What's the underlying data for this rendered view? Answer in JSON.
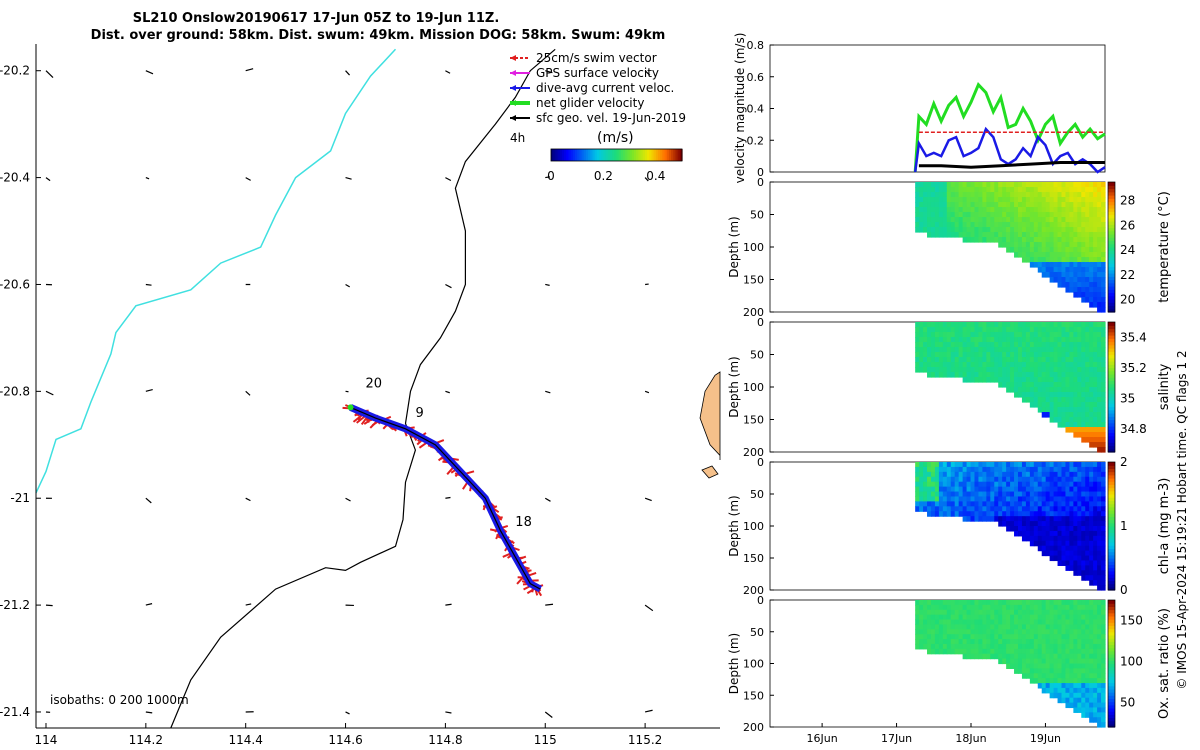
{
  "chart_data": [
    {
      "type": "map",
      "title_line1": "SL210 Onslow20190617 17-Jun 05Z to 19-Jun 11Z.",
      "title_line2": "Dist. over ground: 58km. Dist. swum: 49km. Mission DOG: 58km. Swum: 49km",
      "xlim": [
        113.98,
        115.35
      ],
      "ylim": [
        -21.43,
        -20.15
      ],
      "xticks": [
        "114",
        "114.2",
        "114.4",
        "114.6",
        "114.8",
        "115",
        "115.2"
      ],
      "xtick_values": [
        114,
        114.2,
        114.4,
        114.6,
        114.8,
        115,
        115.2
      ],
      "yticks": [
        "-20.2",
        "-20.4",
        "-20.6",
        "-20.8",
        "-21",
        "-21.2",
        "-21.4"
      ],
      "ytick_values": [
        -20.2,
        -20.4,
        -20.6,
        -20.8,
        -21,
        -21.2,
        -21.4
      ],
      "legend": [
        {
          "label": "25cm/s swim vector",
          "color": "#e02020"
        },
        {
          "label": "GPS surface velocity",
          "color": "#e020e0"
        },
        {
          "label": "dive-avg current veloc.",
          "color": "#1a1ae6"
        },
        {
          "label": "net glider velocity",
          "color": "#22dd22"
        },
        {
          "label": "sfc geo. vel. 19-Jun-2019",
          "color": "#000000"
        }
      ],
      "interval_label": "4h",
      "colorbar_label": "(m/s)",
      "colorbar_ticks": [
        "0",
        "0.2",
        "0.4"
      ],
      "colorbar_values": [
        0,
        0.2,
        0.4
      ],
      "colorbar_range": [
        0,
        0.5
      ],
      "isobath_label": "isobaths: 0   200  1000m",
      "track_labels": [
        {
          "text": "20",
          "lon": 114.64,
          "lat": -20.793
        },
        {
          "text": "9",
          "lon": 114.74,
          "lat": -20.848
        },
        {
          "text": "18",
          "lon": 114.94,
          "lat": -21.052
        }
      ],
      "track": [
        [
          114.61,
          -20.83
        ],
        [
          114.66,
          -20.85
        ],
        [
          114.72,
          -20.87
        ],
        [
          114.78,
          -20.9
        ],
        [
          114.83,
          -20.95
        ],
        [
          114.88,
          -21.0
        ],
        [
          114.91,
          -21.06
        ],
        [
          114.94,
          -21.11
        ],
        [
          114.97,
          -21.16
        ],
        [
          114.99,
          -21.17
        ]
      ],
      "isobath_200m": [
        [
          114.25,
          -21.43
        ],
        [
          114.29,
          -21.34
        ],
        [
          114.35,
          -21.26
        ],
        [
          114.46,
          -21.17
        ],
        [
          114.56,
          -21.13
        ],
        [
          114.6,
          -21.135
        ],
        [
          114.63,
          -21.12
        ],
        [
          114.7,
          -21.09
        ],
        [
          114.715,
          -21.04
        ],
        [
          114.72,
          -20.97
        ],
        [
          114.74,
          -20.91
        ],
        [
          114.72,
          -20.86
        ],
        [
          114.73,
          -20.8
        ],
        [
          114.75,
          -20.75
        ],
        [
          114.79,
          -20.7
        ],
        [
          114.82,
          -20.65
        ],
        [
          114.84,
          -20.6
        ],
        [
          114.84,
          -20.5
        ],
        [
          114.82,
          -20.42
        ],
        [
          114.84,
          -20.37
        ],
        [
          114.9,
          -20.3
        ],
        [
          114.94,
          -20.25
        ],
        [
          114.97,
          -20.2
        ],
        [
          115.02,
          -20.16
        ]
      ],
      "isobath_1000m": [
        [
          113.98,
          -20.99
        ],
        [
          114.0,
          -20.95
        ],
        [
          114.02,
          -20.89
        ],
        [
          114.07,
          -20.87
        ],
        [
          114.09,
          -20.82
        ],
        [
          114.13,
          -20.73
        ],
        [
          114.14,
          -20.69
        ],
        [
          114.18,
          -20.64
        ],
        [
          114.29,
          -20.61
        ],
        [
          114.35,
          -20.56
        ],
        [
          114.43,
          -20.53
        ],
        [
          114.46,
          -20.47
        ],
        [
          114.5,
          -20.4
        ],
        [
          114.57,
          -20.35
        ],
        [
          114.6,
          -20.28
        ],
        [
          114.65,
          -20.21
        ],
        [
          114.7,
          -20.16
        ]
      ],
      "island": [
        [
          115.34,
          -20.77
        ],
        [
          115.32,
          -20.8
        ],
        [
          115.31,
          -20.85
        ],
        [
          115.33,
          -20.9
        ],
        [
          115.35,
          -20.92
        ]
      ]
    },
    {
      "type": "line",
      "ylabel": "velocity magnitude (m/s)",
      "ylim": [
        0,
        0.8
      ],
      "yticks": [
        "0",
        "0.2",
        "0.4",
        "0.6",
        "0.8"
      ],
      "ytick_values": [
        0,
        0.2,
        0.4,
        0.6,
        0.8
      ],
      "xlim_days": [
        15.3,
        19.8
      ],
      "series": [
        {
          "name": "net glider velocity",
          "color": "#22dd22",
          "x": [
            17.25,
            17.3,
            17.4,
            17.5,
            17.6,
            17.7,
            17.8,
            17.9,
            18.0,
            18.1,
            18.2,
            18.3,
            18.4,
            18.5,
            18.6,
            18.7,
            18.8,
            18.9,
            19.0,
            19.1,
            19.2,
            19.3,
            19.4,
            19.5,
            19.6,
            19.7,
            19.8
          ],
          "values": [
            0.0,
            0.35,
            0.3,
            0.43,
            0.32,
            0.42,
            0.47,
            0.35,
            0.44,
            0.55,
            0.5,
            0.38,
            0.47,
            0.28,
            0.3,
            0.4,
            0.32,
            0.2,
            0.3,
            0.35,
            0.18,
            0.25,
            0.3,
            0.22,
            0.27,
            0.21,
            0.24
          ]
        },
        {
          "name": "dive-avg current veloc.",
          "color": "#1a1ae6",
          "x": [
            17.25,
            17.3,
            17.4,
            17.5,
            17.6,
            17.7,
            17.8,
            17.9,
            18.0,
            18.1,
            18.2,
            18.3,
            18.4,
            18.5,
            18.6,
            18.7,
            18.8,
            18.9,
            19.0,
            19.1,
            19.2,
            19.3,
            19.4,
            19.5,
            19.6,
            19.7,
            19.8
          ],
          "values": [
            0.0,
            0.18,
            0.1,
            0.12,
            0.1,
            0.2,
            0.22,
            0.1,
            0.12,
            0.15,
            0.27,
            0.22,
            0.08,
            0.05,
            0.08,
            0.15,
            0.1,
            0.22,
            0.17,
            0.05,
            0.1,
            0.12,
            0.05,
            0.08,
            0.05,
            0.0,
            0.03
          ]
        },
        {
          "name": "25cm/s swim vector",
          "color": "#e02020",
          "x": [
            17.3,
            19.8
          ],
          "values": [
            0.25,
            0.25
          ]
        },
        {
          "name": "sfc geo. vel.",
          "color": "#000000",
          "x": [
            17.3,
            17.6,
            18.0,
            18.4,
            18.8,
            19.2,
            19.6,
            19.8
          ],
          "values": [
            0.04,
            0.04,
            0.03,
            0.04,
            0.05,
            0.06,
            0.06,
            0.06
          ]
        }
      ]
    },
    {
      "type": "heatmap",
      "variable": "temperature",
      "ylabel": "Depth (m)",
      "clabel": "temperature (°C)",
      "yticks": [
        "0",
        "50",
        "100",
        "150",
        "200"
      ],
      "ytick_values": [
        0,
        50,
        100,
        150,
        200
      ],
      "ylim": [
        0,
        200
      ],
      "cticks": [
        "20",
        "22",
        "24",
        "26",
        "28"
      ],
      "ctick_values": [
        20,
        22,
        24,
        26,
        28
      ],
      "crange": [
        19,
        29.5
      ]
    },
    {
      "type": "heatmap",
      "variable": "salinity",
      "ylabel": "Depth (m)",
      "clabel": "salinity",
      "yticks": [
        "0",
        "50",
        "100",
        "150",
        "200"
      ],
      "ytick_values": [
        0,
        50,
        100,
        150,
        200
      ],
      "ylim": [
        0,
        200
      ],
      "cticks": [
        "34.8",
        "35",
        "35.2",
        "35.4"
      ],
      "ctick_values": [
        34.8,
        35,
        35.2,
        35.4
      ],
      "crange": [
        34.65,
        35.5
      ]
    },
    {
      "type": "heatmap",
      "variable": "chl-a",
      "ylabel": "Depth (m)",
      "clabel": "chl-a (mg m-3)",
      "yticks": [
        "0",
        "50",
        "100",
        "150",
        "200"
      ],
      "ytick_values": [
        0,
        50,
        100,
        150,
        200
      ],
      "ylim": [
        0,
        200
      ],
      "cticks": [
        "0",
        "1",
        "2"
      ],
      "ctick_values": [
        0,
        1,
        2
      ],
      "crange": [
        0,
        2
      ]
    },
    {
      "type": "heatmap",
      "variable": "oxygen",
      "ylabel": "Depth (m)",
      "clabel": "Ox. sat. ratio (%)",
      "yticks": [
        "0",
        "50",
        "100",
        "150",
        "200"
      ],
      "ytick_values": [
        0,
        50,
        100,
        150,
        200
      ],
      "ylim": [
        0,
        200
      ],
      "cticks": [
        "50",
        "100",
        "150"
      ],
      "ctick_values": [
        50,
        100,
        150
      ],
      "crange": [
        20,
        175
      ],
      "xticks": [
        "16Jun",
        "17Jun",
        "18Jun",
        "19Jun"
      ],
      "xtick_values": [
        16,
        17,
        18,
        19
      ]
    }
  ],
  "side_note": "© IMOS 15-Apr-2024 15:19:21 Hobart time. QC flags 1  2"
}
